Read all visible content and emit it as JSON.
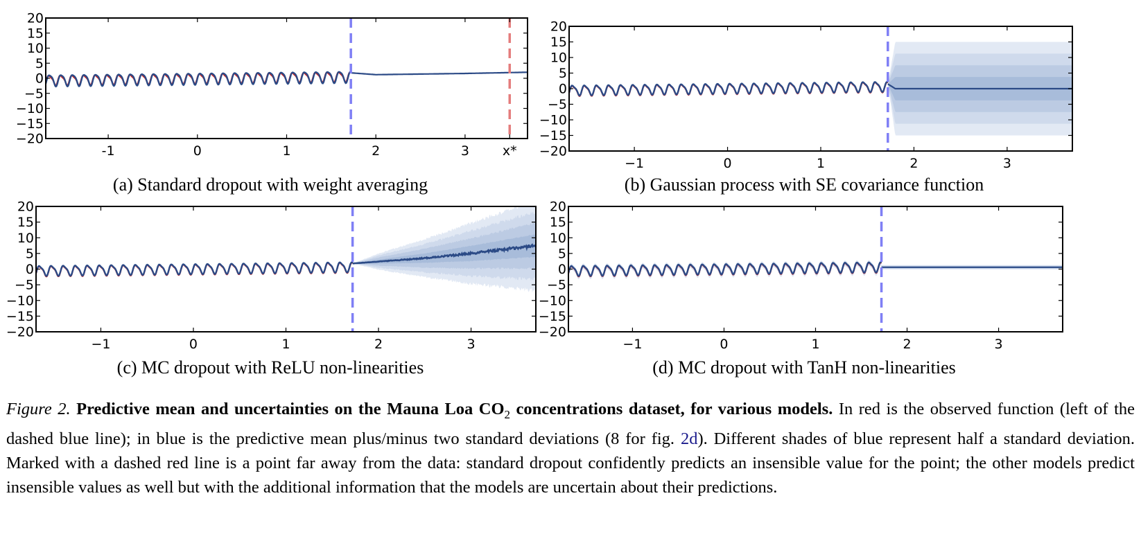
{
  "chart_data": [
    {
      "id": "a",
      "type": "line",
      "caption": "(a) Standard dropout with weight averaging",
      "xlim": [
        -1.7,
        3.7
      ],
      "ylim": [
        -20,
        20
      ],
      "xticks": [
        {
          "v": -1,
          "label": "-1"
        },
        {
          "v": 0,
          "label": "0"
        },
        {
          "v": 1,
          "label": "1"
        },
        {
          "v": 2,
          "label": "2"
        },
        {
          "v": 3,
          "label": "3"
        },
        {
          "v": 3.5,
          "label": "x*"
        }
      ],
      "yticks": [
        {
          "v": 20,
          "label": "20"
        },
        {
          "v": 15,
          "label": "15"
        },
        {
          "v": 10,
          "label": "10"
        },
        {
          "v": 5,
          "label": "5"
        },
        {
          "v": 0,
          "label": "0"
        },
        {
          "v": -5,
          "label": "−5"
        },
        {
          "v": -10,
          "label": "−10"
        },
        {
          "v": -15,
          "label": "−15"
        },
        {
          "v": -20,
          "label": "−20"
        }
      ],
      "observed_end": 1.72,
      "xstar": 3.5,
      "observed": "sinusoid x∈[-1.7,1.72], amplitude ≈1.8, period ≈0.13",
      "mean_extrapolation": [
        {
          "x": 1.72,
          "y": 1.8
        },
        {
          "x": 2,
          "y": 1.2
        },
        {
          "x": 3,
          "y": 1.6
        },
        {
          "x": 3.7,
          "y": 2.0
        }
      ],
      "uncertainty_sd": [
        0,
        0,
        0,
        0
      ],
      "grid": false
    },
    {
      "id": "b",
      "type": "line",
      "caption": "(b) Gaussian process with SE covariance function",
      "xlim": [
        -1.7,
        3.7
      ],
      "ylim": [
        -20,
        20
      ],
      "xticks": [
        {
          "v": -1,
          "label": "−1"
        },
        {
          "v": 0,
          "label": "0"
        },
        {
          "v": 1,
          "label": "1"
        },
        {
          "v": 2,
          "label": "2"
        },
        {
          "v": 3,
          "label": "3"
        }
      ],
      "yticks": [
        {
          "v": 20,
          "label": "20"
        },
        {
          "v": 15,
          "label": "15"
        },
        {
          "v": 10,
          "label": "10"
        },
        {
          "v": 5,
          "label": "5"
        },
        {
          "v": 0,
          "label": "0"
        },
        {
          "v": -5,
          "label": "−5"
        },
        {
          "v": -10,
          "label": "−10"
        },
        {
          "v": -15,
          "label": "−15"
        },
        {
          "v": -20,
          "label": "−20"
        }
      ],
      "observed_end": 1.72,
      "mean_extrapolation": [
        {
          "x": 1.72,
          "y": 1.5
        },
        {
          "x": 1.8,
          "y": 0
        },
        {
          "x": 3.7,
          "y": 0
        }
      ],
      "uncertainty_sd": [
        0,
        7.5,
        7.5
      ],
      "grid": false
    },
    {
      "id": "c",
      "type": "line",
      "caption": "(c) MC dropout with ReLU non-linearities",
      "xlim": [
        -1.7,
        3.7
      ],
      "ylim": [
        -20,
        20
      ],
      "xticks": [
        {
          "v": -1,
          "label": "−1"
        },
        {
          "v": 0,
          "label": "0"
        },
        {
          "v": 1,
          "label": "1"
        },
        {
          "v": 2,
          "label": "2"
        },
        {
          "v": 3,
          "label": "3"
        }
      ],
      "yticks": [
        {
          "v": 20,
          "label": "20"
        },
        {
          "v": 15,
          "label": "15"
        },
        {
          "v": 10,
          "label": "10"
        },
        {
          "v": 5,
          "label": "5"
        },
        {
          "v": 0,
          "label": "0"
        },
        {
          "v": -5,
          "label": "−5"
        },
        {
          "v": -10,
          "label": "−10"
        },
        {
          "v": -15,
          "label": "−15"
        },
        {
          "v": -20,
          "label": "−20"
        }
      ],
      "observed_end": 1.72,
      "mean_extrapolation": [
        {
          "x": 1.72,
          "y": 1.8
        },
        {
          "x": 2,
          "y": 2.4
        },
        {
          "x": 2.5,
          "y": 3.5
        },
        {
          "x": 3,
          "y": 5
        },
        {
          "x": 3.5,
          "y": 6.8
        },
        {
          "x": 3.7,
          "y": 7.5
        }
      ],
      "uncertainty_sd": [
        0,
        1.3,
        3,
        4.8,
        6.5,
        7.2
      ],
      "grid": false
    },
    {
      "id": "d",
      "type": "line",
      "caption": "(d) MC dropout with TanH non-linearities",
      "xlim": [
        -1.7,
        3.7
      ],
      "ylim": [
        -20,
        20
      ],
      "xticks": [
        {
          "v": -1,
          "label": "−1"
        },
        {
          "v": 0,
          "label": "0"
        },
        {
          "v": 1,
          "label": "1"
        },
        {
          "v": 2,
          "label": "2"
        },
        {
          "v": 3,
          "label": "3"
        }
      ],
      "yticks": [
        {
          "v": 20,
          "label": "20"
        },
        {
          "v": 15,
          "label": "15"
        },
        {
          "v": 10,
          "label": "10"
        },
        {
          "v": 5,
          "label": "5"
        },
        {
          "v": 0,
          "label": "0"
        },
        {
          "v": -5,
          "label": "−5"
        },
        {
          "v": -10,
          "label": "−10"
        },
        {
          "v": -15,
          "label": "−15"
        },
        {
          "v": -20,
          "label": "−20"
        }
      ],
      "observed_end": 1.72,
      "mean_extrapolation": [
        {
          "x": 1.72,
          "y": 0.6
        },
        {
          "x": 3.7,
          "y": 0.6
        }
      ],
      "uncertainty_sd": [
        0.35,
        0.35
      ],
      "grid": false
    }
  ],
  "colors": {
    "observed": "#cc2222",
    "mean": "#2b4a86",
    "dashed_blue": "#7f7ff5",
    "dashed_red": "#e47d7d",
    "shades": [
      "#e2e9f4",
      "#cfdaec",
      "#bcccе3",
      "#a8bcda"
    ]
  },
  "caption": {
    "label": "Figure 2.",
    "bold_part1": "Predictive mean and uncertainties on the Mauna Loa CO",
    "bold_sub": "2",
    "bold_part2": " concentrations dataset, for various models.",
    "text1": " In red is the observed function (left of the dashed blue line); in blue is the predictive mean plus/minus two standard deviations (8 for fig. ",
    "link": "2d",
    "text2": "). Different shades of blue represent half a standard deviation. Marked with a dashed red line is a point far away from the data: standard dropout confidently predicts an insensible value for the point; the other models predict insensible values as well but with the additional information that the models are uncertain about their predictions."
  }
}
